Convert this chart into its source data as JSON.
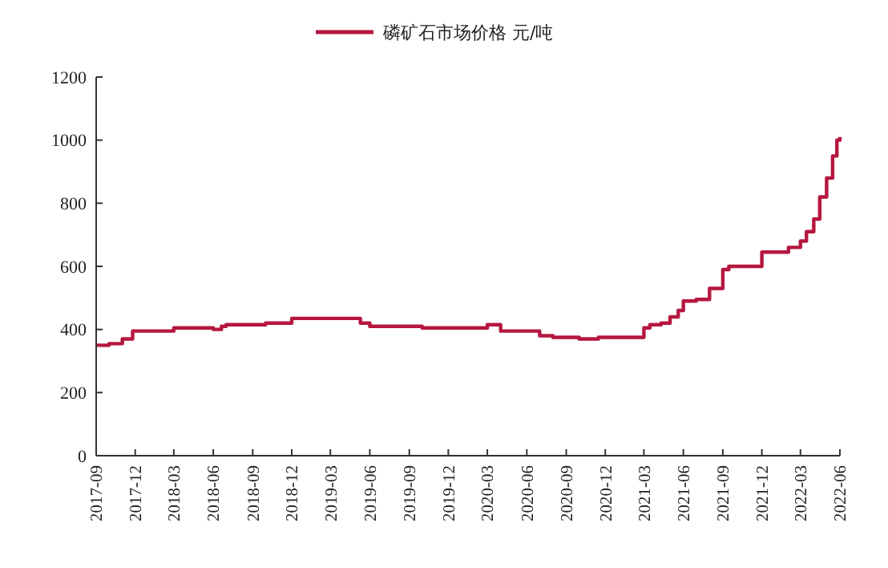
{
  "chart_data": {
    "type": "step",
    "legend": "top",
    "grid": false,
    "xlim": [
      "2017-09",
      "2022-06"
    ],
    "xticks": [
      "2017-09",
      "2017-12",
      "2018-03",
      "2018-06",
      "2018-09",
      "2018-12",
      "2019-03",
      "2019-06",
      "2019-09",
      "2019-12",
      "2020-03",
      "2020-06",
      "2020-09",
      "2020-12",
      "2021-03",
      "2021-06",
      "2021-09",
      "2021-12",
      "2022-03",
      "2022-06"
    ],
    "ylim": [
      0,
      1200
    ],
    "yticks": [
      0,
      200,
      400,
      600,
      800,
      1000,
      1200
    ],
    "series": [
      {
        "name": "磷矿石市场价格 元/吨",
        "color": "#b5173f",
        "x": [
          "2017-09-01",
          "2017-10-01",
          "2017-11-01",
          "2017-11-25",
          "2018-03-01",
          "2018-06-01",
          "2018-06-20",
          "2018-07-01",
          "2018-10-01",
          "2018-12-01",
          "2019-05-10",
          "2019-06-01",
          "2019-10-01",
          "2020-03-01",
          "2020-04-01",
          "2020-07-01",
          "2020-08-01",
          "2020-10-01",
          "2020-11-15",
          "2021-03-01",
          "2021-03-15",
          "2021-04-10",
          "2021-05-01",
          "2021-05-20",
          "2021-06-01",
          "2021-07-01",
          "2021-08-01",
          "2021-09-01",
          "2021-09-15",
          "2021-12-01",
          "2022-02-01",
          "2022-03-01",
          "2022-03-15",
          "2022-04-01",
          "2022-04-15",
          "2022-05-01",
          "2022-05-15",
          "2022-05-25",
          "2022-06-01"
        ],
        "values": [
          350,
          355,
          370,
          395,
          405,
          400,
          410,
          415,
          420,
          435,
          420,
          410,
          405,
          415,
          395,
          380,
          375,
          370,
          375,
          405,
          415,
          420,
          440,
          460,
          490,
          495,
          530,
          590,
          600,
          645,
          660,
          680,
          710,
          750,
          820,
          880,
          950,
          1000,
          1010
        ]
      }
    ]
  }
}
